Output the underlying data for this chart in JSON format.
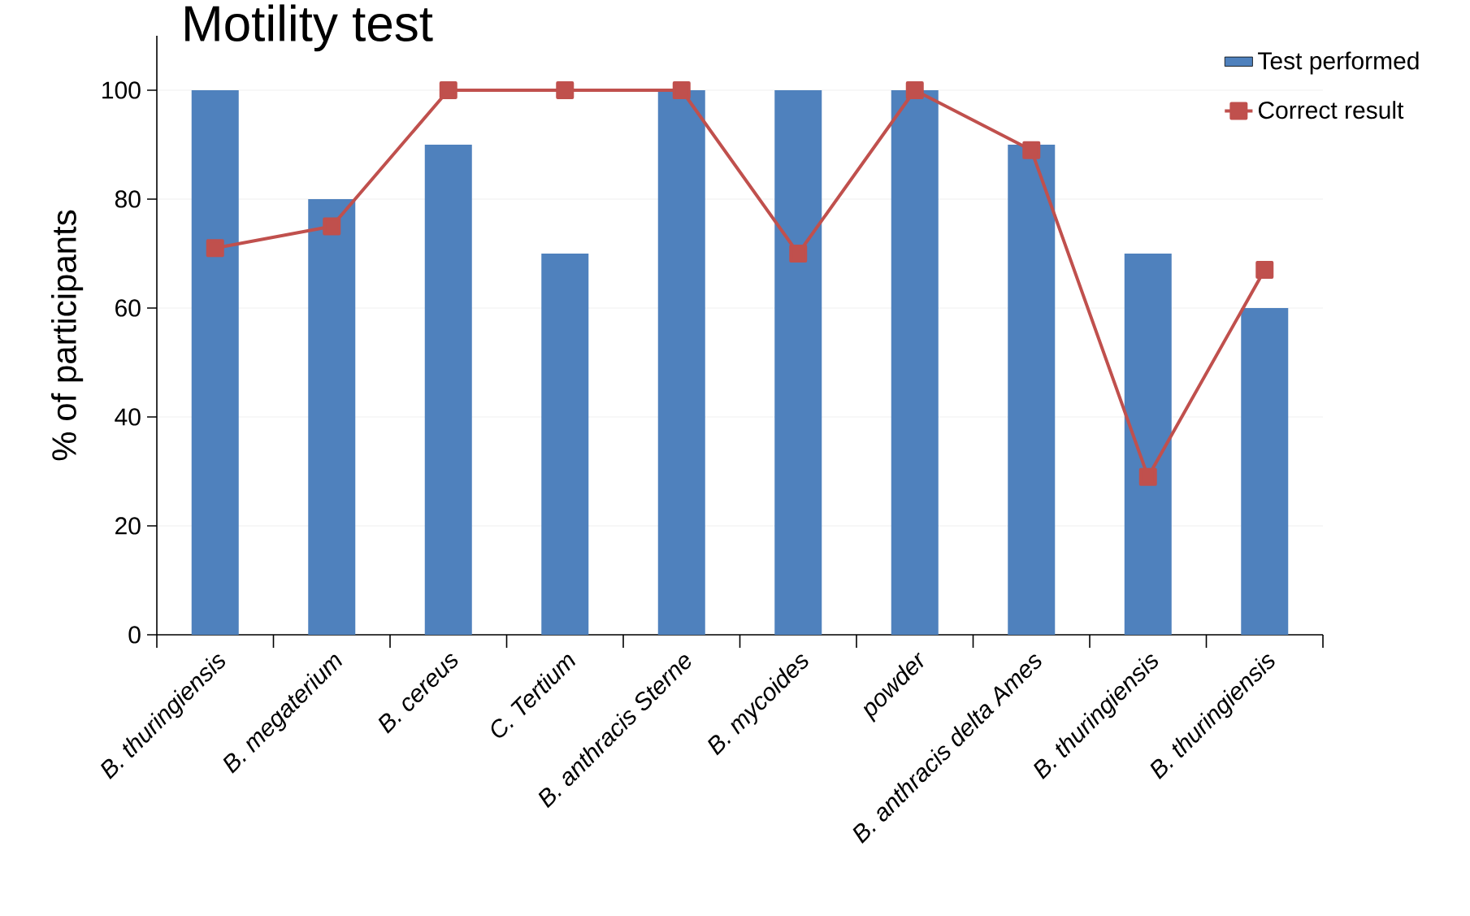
{
  "chart_data": {
    "type": "bar",
    "title": "Motility test",
    "ylabel": "% of participants",
    "categories": [
      "B. thuringiensis",
      "B. megaterium",
      "B. cereus",
      "C. Tertium",
      "B. anthracis Sterne",
      "B. mycoides",
      "powder",
      "B. anthracis delta Ames",
      "B. thuringiensis",
      "B. thuringiensis"
    ],
    "series": [
      {
        "name": "Test performed",
        "color": "#4f81bd",
        "values": [
          100,
          80,
          90,
          70,
          100,
          100,
          100,
          90,
          70,
          60
        ]
      },
      {
        "name": "Correct result",
        "type": "line",
        "color": "#c0504d",
        "marker": "square",
        "line_style": "solid",
        "values": [
          71,
          75,
          100,
          100,
          100,
          70,
          100,
          89,
          29,
          67
        ]
      }
    ],
    "ylim": [
      0,
      110
    ],
    "yticks": [
      0,
      20,
      40,
      60,
      80,
      100
    ],
    "grid": "y",
    "legend": "top right"
  }
}
